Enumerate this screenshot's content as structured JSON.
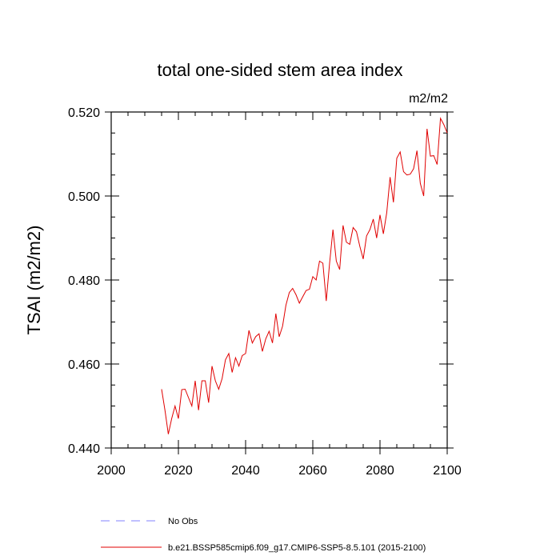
{
  "chart_data": {
    "type": "line",
    "title": "total one-sided stem area index",
    "units": "m2/m2",
    "xlabel": "",
    "ylabel": "TSAI  (m2/m2)",
    "xlim": [
      2000,
      2100
    ],
    "ylim": [
      0.44,
      0.52
    ],
    "x_ticks": [
      2000,
      2020,
      2040,
      2060,
      2080,
      2100
    ],
    "x_tick_labels": [
      "2000",
      "2020",
      "2040",
      "2060",
      "2080",
      "2100"
    ],
    "y_ticks": [
      0.44,
      0.46,
      0.48,
      0.5,
      0.52
    ],
    "y_tick_labels": [
      "0.440",
      "0.460",
      "0.480",
      "0.500",
      "0.520"
    ],
    "grid": false,
    "legend": [
      {
        "label": "No Obs",
        "color": "#8080ff",
        "style": "dashed"
      },
      {
        "label": "b.e21.BSSP585cmip6.f09_g17.CMIP6-SSP5-8.5.101 (2015-2100)",
        "color": "#e00000",
        "style": "solid"
      }
    ],
    "series": [
      {
        "name": "b.e21.BSSP585cmip6.f09_g17.CMIP6-SSP5-8.5.101 (2015-2100)",
        "color": "#e00000",
        "x": [
          2015,
          2016,
          2017,
          2018,
          2019,
          2020,
          2021,
          2022,
          2023,
          2024,
          2025,
          2026,
          2027,
          2028,
          2029,
          2030,
          2031,
          2032,
          2033,
          2034,
          2035,
          2036,
          2037,
          2038,
          2039,
          2040,
          2041,
          2042,
          2043,
          2044,
          2045,
          2046,
          2047,
          2048,
          2049,
          2050,
          2051,
          2052,
          2053,
          2054,
          2055,
          2056,
          2057,
          2058,
          2059,
          2060,
          2061,
          2062,
          2063,
          2064,
          2065,
          2066,
          2067,
          2068,
          2069,
          2070,
          2071,
          2072,
          2073,
          2074,
          2075,
          2076,
          2077,
          2078,
          2079,
          2080,
          2081,
          2082,
          2083,
          2084,
          2085,
          2086,
          2087,
          2088,
          2089,
          2090,
          2091,
          2092,
          2093,
          2094,
          2095,
          2096,
          2097,
          2098,
          2099,
          2100
        ],
        "values": [
          0.454,
          0.449,
          0.4433,
          0.447,
          0.45,
          0.447,
          0.4539,
          0.454,
          0.452,
          0.45,
          0.456,
          0.449,
          0.456,
          0.456,
          0.4508,
          0.4595,
          0.456,
          0.454,
          0.4565,
          0.461,
          0.4625,
          0.458,
          0.4615,
          0.4595,
          0.462,
          0.4625,
          0.468,
          0.465,
          0.4665,
          0.4672,
          0.463,
          0.466,
          0.4678,
          0.465,
          0.472,
          0.4665,
          0.469,
          0.474,
          0.477,
          0.478,
          0.4765,
          0.4745,
          0.476,
          0.4775,
          0.4778,
          0.4808,
          0.48,
          0.4845,
          0.484,
          0.475,
          0.484,
          0.492,
          0.4845,
          0.4825,
          0.493,
          0.489,
          0.4885,
          0.4925,
          0.4915,
          0.488,
          0.485,
          0.4905,
          0.492,
          0.4945,
          0.49,
          0.4955,
          0.491,
          0.496,
          0.5045,
          0.4985,
          0.509,
          0.5105,
          0.5058,
          0.505,
          0.5052,
          0.5065,
          0.5108,
          0.503,
          0.5,
          0.516,
          0.5095,
          0.5096,
          0.5075,
          0.5185,
          0.517,
          0.515
        ]
      }
    ]
  }
}
